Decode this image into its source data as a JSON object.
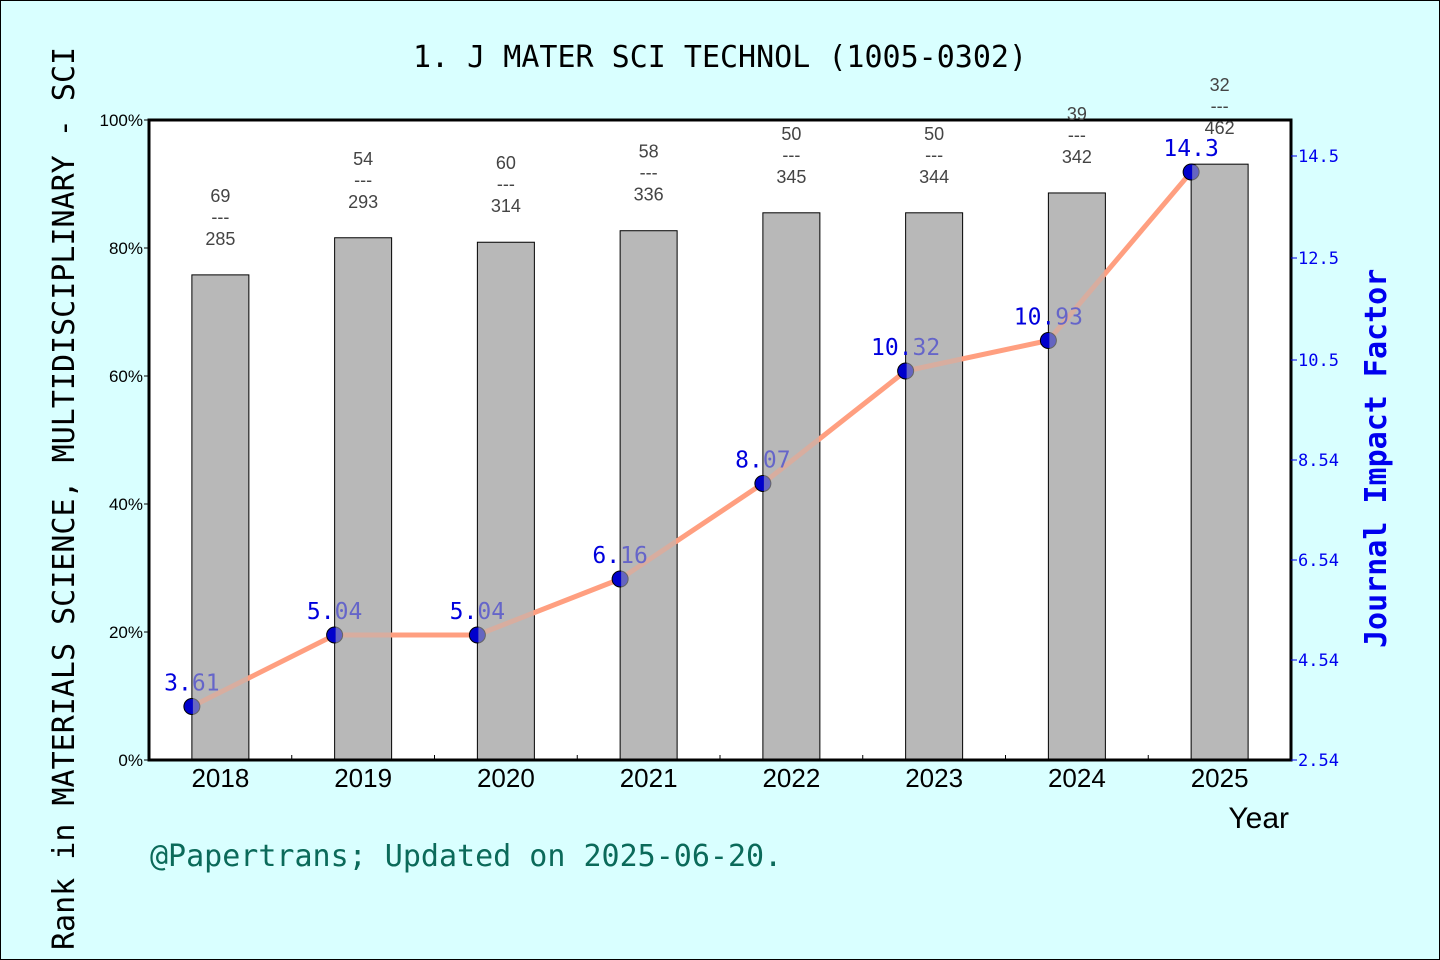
{
  "chart_data": {
    "type": "bar+line",
    "title": "1. J MATER SCI TECHNOL (1005-0302)",
    "xlabel": "Year",
    "ylabel": "Rank in MATERIALS SCIENCE, MULTIDISCIPLINARY - SCI",
    "y2label": "Journal Impact Factor",
    "categories": [
      "2018",
      "2019",
      "2020",
      "2021",
      "2022",
      "2023",
      "2024",
      "2025"
    ],
    "ylim": [
      0,
      100
    ],
    "yticks": [
      "0%",
      "20%",
      "40%",
      "60%",
      "80%",
      "100%"
    ],
    "y2lim": [
      2.54,
      15.34
    ],
    "y2ticks": [
      "2.54",
      "4.54",
      "6.54",
      "8.54",
      "10.5",
      "12.5",
      "14.5"
    ],
    "rank": [
      69,
      54,
      60,
      58,
      50,
      50,
      39,
      32
    ],
    "total": [
      285,
      293,
      314,
      336,
      345,
      344,
      342,
      462
    ],
    "bar_percentile": [
      75.8,
      81.6,
      80.9,
      82.7,
      85.5,
      85.5,
      88.6,
      93.1
    ],
    "impact_factor": [
      3.61,
      5.04,
      5.04,
      6.16,
      8.07,
      10.32,
      10.93,
      14.3
    ],
    "impact_factor_labels": [
      "3.61",
      "5.04",
      "5.04",
      "6.16",
      "8.07",
      "10.32",
      "10.93",
      "14.3"
    ],
    "colors": {
      "bar": "#b8b8b8",
      "line": "#ff9f80",
      "point": "#0000cc",
      "background": "#d9ffff"
    }
  },
  "footer": "@Papertrans; Updated on 2025-06-20."
}
